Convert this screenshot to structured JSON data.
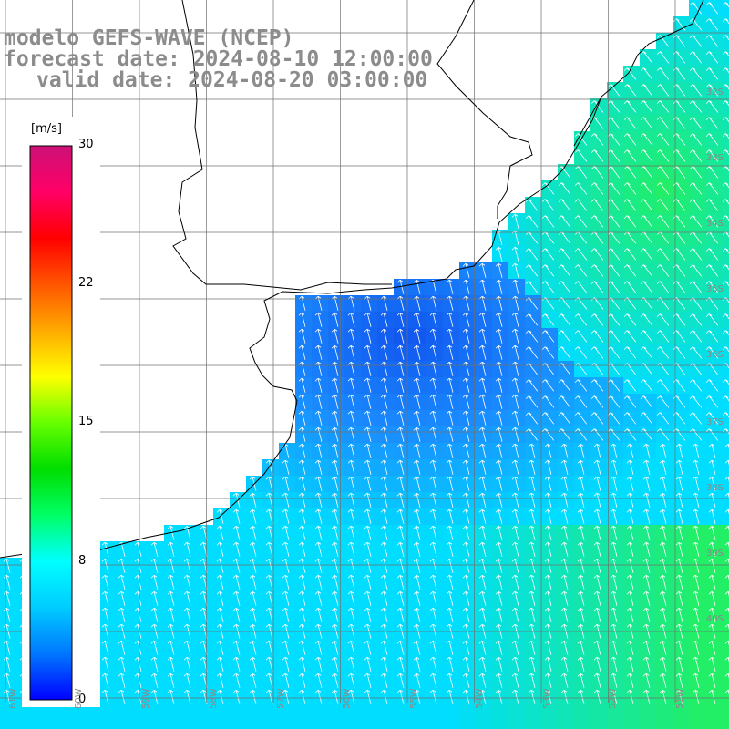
{
  "title": {
    "model": "modelo GEFS-WAVE (NCEP)",
    "forecast": "forecast date: 2024-08-10 12:00:00",
    "valid": "valid date: 2024-08-20 03:00:00"
  },
  "colorbar": {
    "units": "[m/s]",
    "ticks": [
      "30",
      "22",
      "15",
      "8",
      "0"
    ],
    "colors": [
      "#0000ff",
      "#0077ff",
      "#00ccff",
      "#00ffff",
      "#00ff66",
      "#00dd00",
      "#66ff00",
      "#ffff00",
      "#ffaa00",
      "#ff5500",
      "#ff0000",
      "#ff0066",
      "#cc1177"
    ]
  },
  "axes": {
    "lon_labels": [
      "61W",
      "60W",
      "59W",
      "58W",
      "57W",
      "56W",
      "55W",
      "54W",
      "53W",
      "52W",
      "51W"
    ],
    "lat_labels": [
      "32S",
      "33S",
      "34S",
      "35S",
      "36S",
      "37S",
      "38S",
      "39S",
      "40S"
    ]
  },
  "colors": {
    "land": "#ffffff",
    "coast": "#000000",
    "grid": "#707070",
    "arrow": "#ffffff",
    "calm_blue": "#1155ee",
    "mid_cyan": "#00ddff",
    "green": "#22ee66"
  }
}
